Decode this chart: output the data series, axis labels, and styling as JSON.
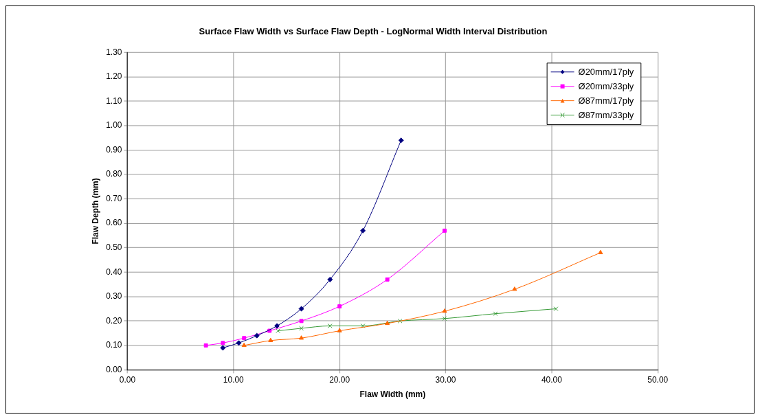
{
  "chart_data": {
    "type": "line",
    "title": "Surface Flaw Width vs Surface Flaw Depth - LogNormal Width Interval Distribution",
    "xlabel": "Flaw Width (mm)",
    "ylabel": "Flaw Depth (mm)",
    "xlim": [
      0,
      50
    ],
    "xticks": [
      {
        "value": 0,
        "label": "0.00"
      },
      {
        "value": 10,
        "label": "10.00"
      },
      {
        "value": 20,
        "label": "20.00"
      },
      {
        "value": 30,
        "label": "30.00"
      },
      {
        "value": 40,
        "label": "40.00"
      },
      {
        "value": 50,
        "label": "50.00"
      }
    ],
    "ylim": [
      0,
      1.3
    ],
    "yticks": [
      {
        "value": 0,
        "label": "0.00"
      },
      {
        "value": 0.1,
        "label": "0.10"
      },
      {
        "value": 0.2,
        "label": "0.20"
      },
      {
        "value": 0.3,
        "label": "0.30"
      },
      {
        "value": 0.4,
        "label": "0.40"
      },
      {
        "value": 0.5,
        "label": "0.50"
      },
      {
        "value": 0.6,
        "label": "0.60"
      },
      {
        "value": 0.7,
        "label": "0.70"
      },
      {
        "value": 0.8,
        "label": "0.80"
      },
      {
        "value": 0.9,
        "label": "0.90"
      },
      {
        "value": 1.0,
        "label": "1.00"
      },
      {
        "value": 1.1,
        "label": "1.10"
      },
      {
        "value": 1.2,
        "label": "1.20"
      },
      {
        "value": 1.3,
        "label": "1.30"
      }
    ],
    "grid": true,
    "legend": "top right",
    "line_style": "solid",
    "series": [
      {
        "name": "Ø20mm/17ply",
        "color": "#000080",
        "marker": "diamond",
        "x": [
          9.0,
          10.5,
          12.2,
          14.1,
          16.4,
          19.1,
          22.2,
          25.8
        ],
        "values": [
          0.09,
          0.11,
          0.14,
          0.18,
          0.25,
          0.37,
          0.57,
          0.94
        ]
      },
      {
        "name": "Ø20mm/33ply",
        "color": "#ff00ff",
        "marker": "square",
        "x": [
          7.4,
          9.0,
          11.0,
          13.4,
          16.4,
          20.0,
          24.5,
          29.9
        ],
        "values": [
          0.1,
          0.11,
          0.13,
          0.16,
          0.2,
          0.26,
          0.37,
          0.57
        ]
      },
      {
        "name": "Ø87mm/17ply",
        "color": "#ff6600",
        "marker": "triangle",
        "x": [
          11.0,
          13.5,
          16.4,
          20.0,
          24.5,
          29.9,
          36.5,
          44.6
        ],
        "values": [
          0.1,
          0.12,
          0.13,
          0.16,
          0.19,
          0.24,
          0.33,
          0.48
        ]
      },
      {
        "name": "Ø87mm/33ply",
        "color": "#339933",
        "marker": "cross",
        "x": [
          14.2,
          16.4,
          19.1,
          22.2,
          25.7,
          29.9,
          34.7,
          40.4
        ],
        "values": [
          0.16,
          0.17,
          0.18,
          0.18,
          0.2,
          0.21,
          0.23,
          0.25
        ]
      }
    ]
  }
}
